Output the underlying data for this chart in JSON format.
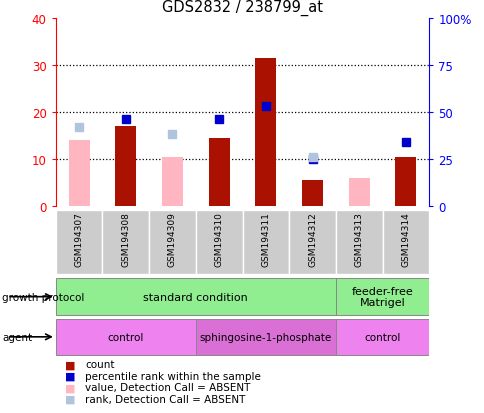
{
  "title": "GDS2832 / 238799_at",
  "samples": [
    "GSM194307",
    "GSM194308",
    "GSM194309",
    "GSM194310",
    "GSM194311",
    "GSM194312",
    "GSM194313",
    "GSM194314"
  ],
  "count_present": [
    null,
    17,
    null,
    14.5,
    31.5,
    5.5,
    null,
    10.5
  ],
  "count_absent": [
    14,
    null,
    10.5,
    null,
    null,
    null,
    6,
    null
  ],
  "rank_present_pct": [
    null,
    46,
    null,
    46,
    53,
    25,
    null,
    34
  ],
  "rank_absent_pct": [
    42,
    null,
    38,
    null,
    null,
    26,
    null,
    null
  ],
  "ylim_left": [
    0,
    40
  ],
  "ylim_right": [
    0,
    100
  ],
  "yticks_left": [
    0,
    10,
    20,
    30,
    40
  ],
  "yticks_right": [
    0,
    25,
    50,
    75,
    100
  ],
  "ytick_labels_left": [
    "0",
    "10",
    "20",
    "30",
    "40"
  ],
  "ytick_labels_right": [
    "0",
    "25",
    "50",
    "75",
    "100%"
  ],
  "color_count": "#AA1100",
  "color_rank": "#0000CC",
  "color_count_absent": "#FFB6C1",
  "color_rank_absent": "#B0C4DE",
  "bar_width": 0.45,
  "marker_size": 6,
  "grid_lines": [
    10,
    20,
    30
  ],
  "growth_groups": [
    {
      "label": "standard condition",
      "start": 0,
      "end": 5,
      "color": "#90EE90"
    },
    {
      "label": "feeder-free\nMatrigel",
      "start": 6,
      "end": 7,
      "color": "#90EE90"
    }
  ],
  "agent_groups": [
    {
      "label": "control",
      "start": 0,
      "end": 2,
      "color": "#EE82EE"
    },
    {
      "label": "sphingosine-1-phosphate",
      "start": 3,
      "end": 5,
      "color": "#DA70D6"
    },
    {
      "label": "control",
      "start": 6,
      "end": 7,
      "color": "#EE82EE"
    }
  ],
  "legend_labels": [
    "count",
    "percentile rank within the sample",
    "value, Detection Call = ABSENT",
    "rank, Detection Call = ABSENT"
  ],
  "legend_colors": [
    "#AA1100",
    "#0000CC",
    "#FFB6C1",
    "#B0C4DE"
  ]
}
